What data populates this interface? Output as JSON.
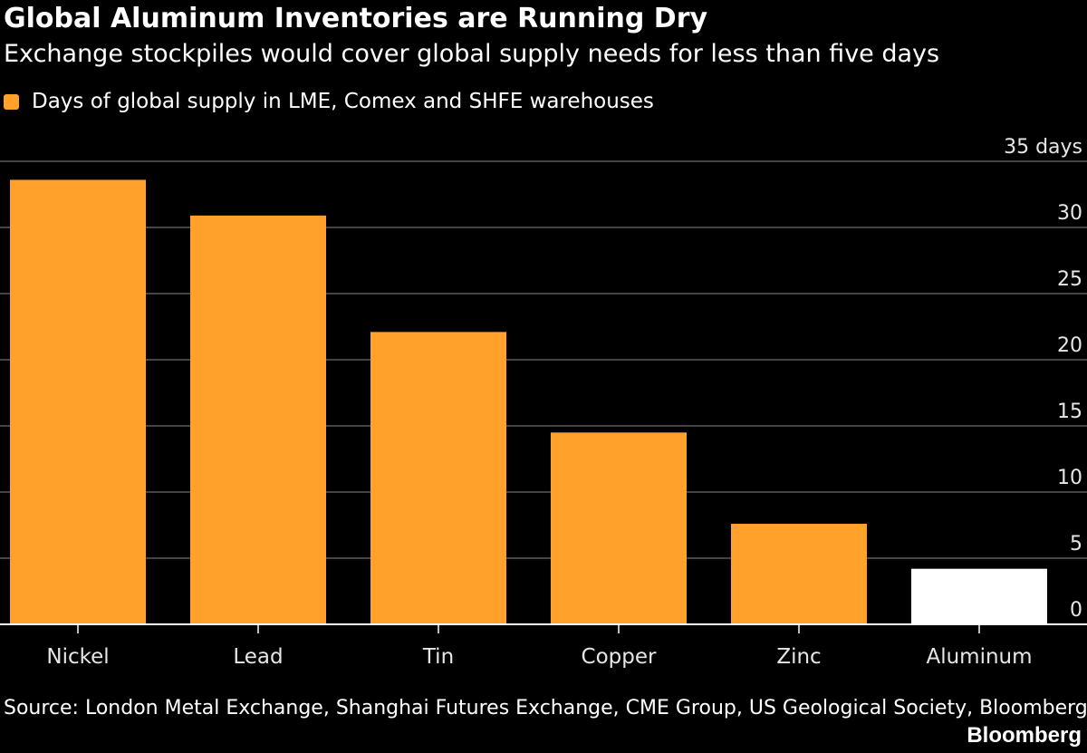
{
  "chart_data": {
    "type": "bar",
    "title": "Global Aluminum Inventories are Running Dry",
    "subtitle": "Exchange stockpiles would cover global supply needs for less than five days",
    "legend": {
      "label": "Days of global supply in LME, Comex and SHFE warehouses",
      "color": "#FFA12A"
    },
    "categories": [
      "Nickel",
      "Lead",
      "Tin",
      "Copper",
      "Zinc",
      "Aluminum"
    ],
    "series": [
      {
        "name": "Days of global supply in LME, Comex and SHFE warehouses",
        "values": [
          33.6,
          30.9,
          22.1,
          14.5,
          7.6,
          4.2
        ],
        "colors": [
          "#FFA12A",
          "#FFA12A",
          "#FFA12A",
          "#FFA12A",
          "#FFA12A",
          "#FFFFFF"
        ]
      }
    ],
    "ylim": [
      0,
      35
    ],
    "yticks": [
      0,
      5,
      10,
      15,
      20,
      25,
      30,
      35
    ],
    "ytick_labels": [
      "0",
      "5",
      "10",
      "15",
      "20",
      "25",
      "30",
      "35 days"
    ],
    "y_axis_side": "right",
    "grid": true,
    "legend_placement": "top-left",
    "xlabel": "",
    "ylabel": ""
  },
  "footer": {
    "source": "Source: London Metal Exchange, Shanghai Futures Exchange, CME Group, US Geological Society, Bloomberg",
    "brand": "Bloomberg"
  },
  "colors": {
    "background": "#000000",
    "text": "#FFFFFF",
    "grid": "#5A5A5A",
    "axis": "#FFFFFF",
    "tick_label": "#E6E6E6"
  }
}
